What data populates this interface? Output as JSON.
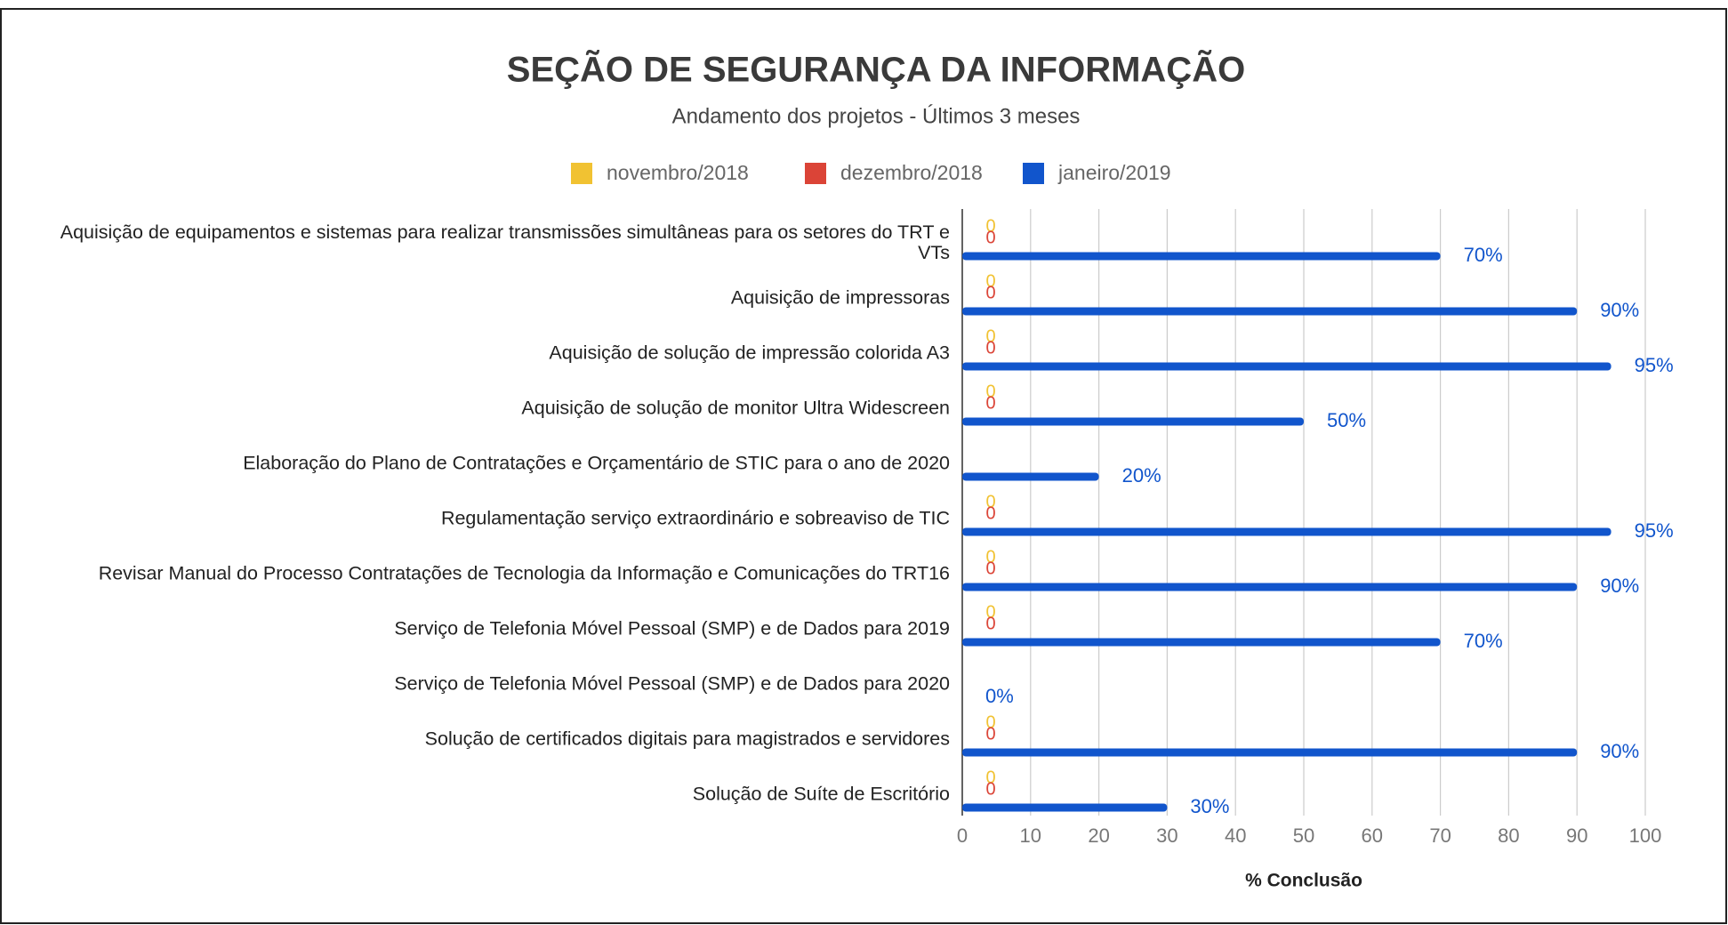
{
  "chart_data": {
    "type": "bar",
    "orientation": "horizontal",
    "title": "SEÇÃO DE SEGURANÇA DA INFORMAÇÃO",
    "subtitle": "Andamento dos projetos - Últimos 3 meses",
    "x_label": "% Conclusão",
    "categories": [
      "Aquisição de equipamentos e sistemas para realizar transmissões simultâneas para os setores do TRT e VTs",
      "Aquisição de impressoras",
      "Aquisição de solução de impressão colorida A3",
      "Aquisição de solução de monitor Ultra Widescreen",
      "Elaboração do Plano de Contratações e Orçamentário de STIC para o ano de 2020",
      "Regulamentação serviço extraordinário e sobreaviso de TIC",
      "Revisar Manual do Processo Contratações de Tecnologia da Informação e Comunicações do TRT16",
      "Serviço de Telefonia Móvel Pessoal (SMP) e de Dados para 2019",
      "Serviço de Telefonia Móvel Pessoal (SMP) e de Dados para 2020",
      "Solução de certificados digitais para magistrados e servidores",
      "Solução de Suíte de Escritório"
    ],
    "series": [
      {
        "name": "novembro/2018",
        "color": "#f1c232",
        "values": [
          0,
          0,
          0,
          0,
          null,
          0,
          0,
          0,
          null,
          0,
          0
        ]
      },
      {
        "name": "dezembro/2018",
        "color": "#db4437",
        "values": [
          0,
          0,
          0,
          0,
          null,
          0,
          0,
          0,
          null,
          0,
          0
        ]
      },
      {
        "name": "janeiro/2019",
        "color": "#1155cc",
        "values": [
          70,
          90,
          95,
          50,
          20,
          95,
          90,
          70,
          0,
          90,
          30
        ],
        "value_labels": [
          "70%",
          "90%",
          "95%",
          "50%",
          "20%",
          "95%",
          "90%",
          "70%",
          "0%",
          "90%",
          "30%"
        ]
      }
    ],
    "xlim": [
      0,
      100
    ],
    "xticks": [
      0,
      10,
      20,
      30,
      40,
      50,
      60,
      70,
      80,
      90,
      100
    ],
    "grid": true,
    "legend": "top"
  }
}
